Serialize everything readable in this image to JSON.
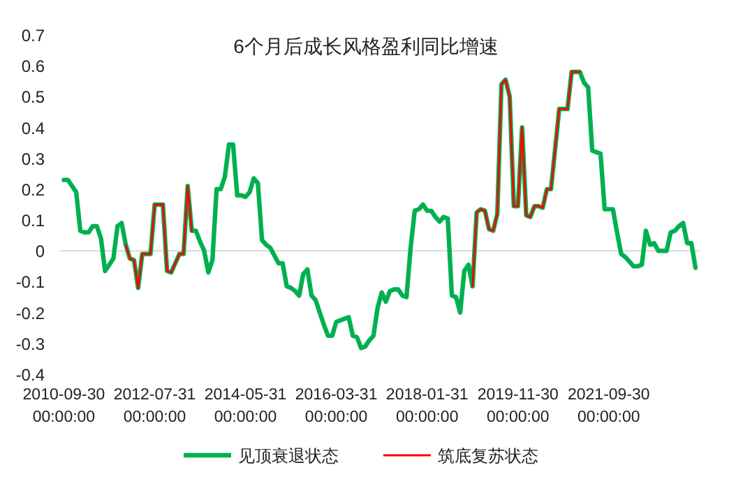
{
  "chart_data": {
    "type": "line",
    "title": "6个月后成长风格盈利同比增速",
    "categories": [
      "2010-09-30 00:00:00",
      null,
      null,
      null,
      null,
      null,
      null,
      null,
      null,
      null,
      null,
      null,
      null,
      null,
      null,
      null,
      null,
      null,
      null,
      null,
      null,
      null,
      "2012-07-31 00:00:00",
      null,
      null,
      null,
      null,
      null,
      null,
      null,
      null,
      null,
      null,
      null,
      null,
      null,
      null,
      null,
      null,
      null,
      null,
      null,
      null,
      null,
      "2014-05-31 00:00:00",
      null,
      null,
      null,
      null,
      null,
      null,
      null,
      null,
      null,
      null,
      null,
      null,
      null,
      null,
      null,
      null,
      null,
      null,
      null,
      null,
      null,
      "2016-03-31 00:00:00",
      null,
      null,
      null,
      null,
      null,
      null,
      null,
      null,
      null,
      null,
      null,
      null,
      null,
      null,
      null,
      null,
      null,
      null,
      null,
      null,
      null,
      "2018-01-31 00:00:00",
      null,
      null,
      null,
      null,
      null,
      null,
      null,
      null,
      null,
      null,
      null,
      null,
      null,
      null,
      null,
      null,
      null,
      null,
      null,
      null,
      null,
      "2019-11-30 00:00:00",
      null,
      null,
      null,
      null,
      null,
      null,
      null,
      null,
      null,
      null,
      null,
      null,
      null,
      null,
      null,
      null,
      null,
      null,
      null,
      null,
      null,
      "2021-09-30 00:00:00",
      null,
      null,
      null,
      null,
      null,
      null,
      null,
      null,
      null,
      null,
      null,
      null,
      null,
      null,
      null,
      null,
      null,
      null,
      null,
      null,
      null
    ],
    "ylim": [
      -0.4,
      0.7
    ],
    "yticks": [
      -0.4,
      -0.3,
      -0.2,
      -0.1,
      0,
      0.1,
      0.2,
      0.3,
      0.4,
      0.5,
      0.6,
      0.7
    ],
    "legend": "bottom",
    "series": [
      {
        "name": "见顶衰退状态",
        "color": "#00b050",
        "values": [
          0.23,
          0.23,
          0.21,
          0.19,
          0.065,
          0.06,
          0.06,
          0.08,
          0.08,
          0.04,
          -0.065,
          -0.045,
          -0.025,
          0.08,
          0.09,
          0.02,
          -0.025,
          -0.03,
          -0.12,
          -0.01,
          -0.01,
          -0.01,
          0.15,
          0.15,
          0.15,
          -0.065,
          -0.07,
          -0.04,
          -0.01,
          -0.01,
          0.21,
          0.065,
          0.065,
          0.03,
          0,
          -0.07,
          -0.03,
          0.2,
          0.2,
          0.24,
          0.345,
          0.345,
          0.18,
          0.18,
          0.175,
          0.19,
          0.235,
          0.22,
          0.035,
          0.02,
          0.01,
          -0.015,
          -0.04,
          -0.04,
          -0.115,
          -0.12,
          -0.13,
          -0.145,
          -0.075,
          -0.06,
          -0.145,
          -0.16,
          -0.2,
          -0.24,
          -0.275,
          -0.275,
          -0.23,
          -0.225,
          -0.22,
          -0.215,
          -0.275,
          -0.28,
          -0.315,
          -0.31,
          -0.29,
          -0.275,
          -0.185,
          -0.135,
          -0.165,
          -0.13,
          -0.125,
          -0.125,
          -0.145,
          -0.15,
          0.01,
          0.13,
          0.135,
          0.15,
          0.13,
          0.13,
          0.11,
          0.095,
          0.11,
          0.105,
          -0.145,
          -0.15,
          -0.2,
          -0.065,
          -0.045,
          -0.115,
          0.125,
          0.135,
          0.13,
          0.07,
          0.065,
          0.12,
          0.54,
          0.555,
          0.5,
          0.145,
          0.145,
          0.4,
          0.115,
          0.11,
          0.145,
          0.145,
          0.14,
          0.2,
          0.2,
          0.33,
          0.46,
          0.46,
          0.46,
          0.58,
          0.58,
          0.58,
          0.545,
          0.53,
          0.325,
          0.32,
          0.315,
          0.135,
          0.135,
          0.135,
          0.06,
          -0.01,
          -0.02,
          -0.035,
          -0.05,
          -0.05,
          -0.045,
          0.065,
          0.02,
          0.025,
          0,
          0,
          0,
          0.06,
          0.065,
          0.08,
          0.09,
          0.025,
          0.025,
          -0.055
        ]
      },
      {
        "name": "筑底复苏状态",
        "color": "#ff0000",
        "values": [
          null,
          null,
          null,
          null,
          null,
          null,
          null,
          null,
          null,
          null,
          null,
          null,
          null,
          null,
          null,
          0.02,
          -0.025,
          -0.03,
          -0.12,
          -0.01,
          -0.01,
          -0.01,
          0.15,
          0.15,
          0.15,
          -0.065,
          -0.07,
          -0.04,
          -0.01,
          -0.01,
          0.21,
          0.065,
          null,
          null,
          null,
          null,
          null,
          null,
          null,
          null,
          null,
          null,
          null,
          null,
          null,
          null,
          null,
          null,
          null,
          null,
          null,
          null,
          null,
          null,
          null,
          null,
          null,
          null,
          null,
          null,
          null,
          null,
          null,
          null,
          null,
          null,
          null,
          null,
          null,
          null,
          null,
          null,
          null,
          null,
          null,
          null,
          null,
          null,
          null,
          null,
          null,
          null,
          null,
          null,
          null,
          null,
          null,
          null,
          null,
          null,
          null,
          null,
          null,
          null,
          null,
          null,
          null,
          null,
          null,
          -0.115,
          0.125,
          0.135,
          0.13,
          0.07,
          0.065,
          0.12,
          0.54,
          0.555,
          0.5,
          0.145,
          0.145,
          0.4,
          0.115,
          0.11,
          0.145,
          0.145,
          0.14,
          0.2,
          0.2,
          0.33,
          0.46,
          0.46,
          0.46,
          0.58,
          0.58,
          0.58,
          null,
          null,
          null,
          null,
          null,
          null,
          null,
          null,
          null,
          null,
          null,
          null,
          null,
          null,
          null,
          null,
          null,
          null,
          null,
          null,
          null,
          null,
          null,
          null,
          null,
          null,
          null,
          null
        ]
      }
    ]
  }
}
